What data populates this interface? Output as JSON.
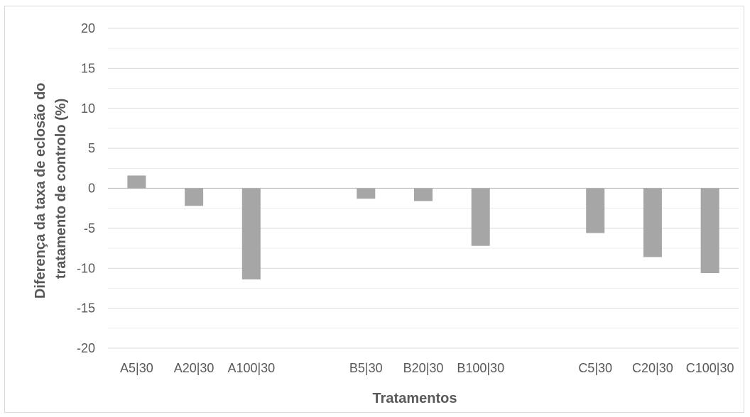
{
  "chart_data": {
    "type": "bar",
    "xlabel": "Tratamentos",
    "ylabel_lines": [
      "Diferença da taxa de eclosão do",
      "tratamento de controlo (%)"
    ],
    "ylim": [
      -20,
      20
    ],
    "yticks": [
      20,
      15,
      10,
      5,
      0,
      -5,
      -10,
      -15,
      -20
    ],
    "minor_gridlines_step": 2.5,
    "grid": true,
    "legend": "none",
    "categories": [
      "A5|30",
      "A20|30",
      "A100|30",
      "",
      "B5|30",
      "B20|30",
      "B100|30",
      "",
      "C5|30",
      "C20|30",
      "C100|30"
    ],
    "values": [
      1.6,
      -2.2,
      -11.4,
      null,
      -1.3,
      -1.6,
      -7.2,
      null,
      -5.6,
      -8.6,
      -10.6
    ],
    "bar_color": "#a6a6a6",
    "gridline_color": "#d9d9d9",
    "axis_line_color": "#bfbfbf",
    "text_color": "#595959"
  }
}
